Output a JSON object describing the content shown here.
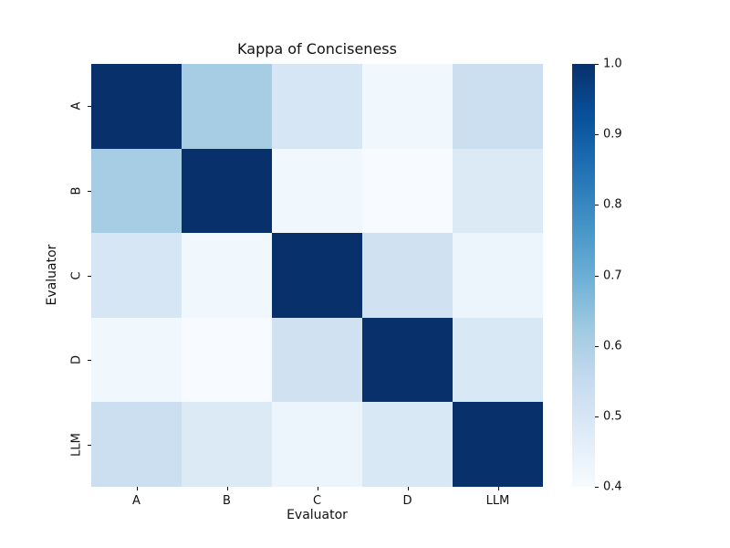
{
  "figure": {
    "background_color": "#ffffff",
    "text_color": "#111111"
  },
  "chart_data": {
    "type": "heatmap",
    "title": "Kappa of Conciseness",
    "xlabel": "Evaluator",
    "ylabel": "Evaluator",
    "x_categories": [
      "A",
      "B",
      "C",
      "D",
      "LLM"
    ],
    "y_categories": [
      "A",
      "B",
      "C",
      "D",
      "LLM"
    ],
    "matrix": [
      [
        1.0,
        0.61,
        0.5,
        0.42,
        0.53
      ],
      [
        0.61,
        1.0,
        0.42,
        0.4,
        0.48
      ],
      [
        0.5,
        0.42,
        1.0,
        0.52,
        0.43
      ],
      [
        0.42,
        0.4,
        0.52,
        1.0,
        0.49
      ],
      [
        0.53,
        0.48,
        0.43,
        0.49,
        1.0
      ]
    ],
    "vmin": 0.4,
    "vmax": 1.0,
    "colormap": "Blues",
    "colormap_anchors": [
      "#f7fbff",
      "#deebf7",
      "#c6dbef",
      "#9ecae1",
      "#6baed6",
      "#4292c6",
      "#2171b5",
      "#08519c",
      "#08306b"
    ],
    "colorbar_ticks": [
      {
        "label": "1.0",
        "value": 1.0
      },
      {
        "label": "0.9",
        "value": 0.9
      },
      {
        "label": "0.8",
        "value": 0.8
      },
      {
        "label": "0.7",
        "value": 0.7
      },
      {
        "label": "0.6",
        "value": 0.6
      },
      {
        "label": "0.5",
        "value": 0.5
      },
      {
        "label": "0.4",
        "value": 0.4
      }
    ],
    "legend_position": "right-colorbar",
    "grid": false,
    "cell_annotations": false
  }
}
